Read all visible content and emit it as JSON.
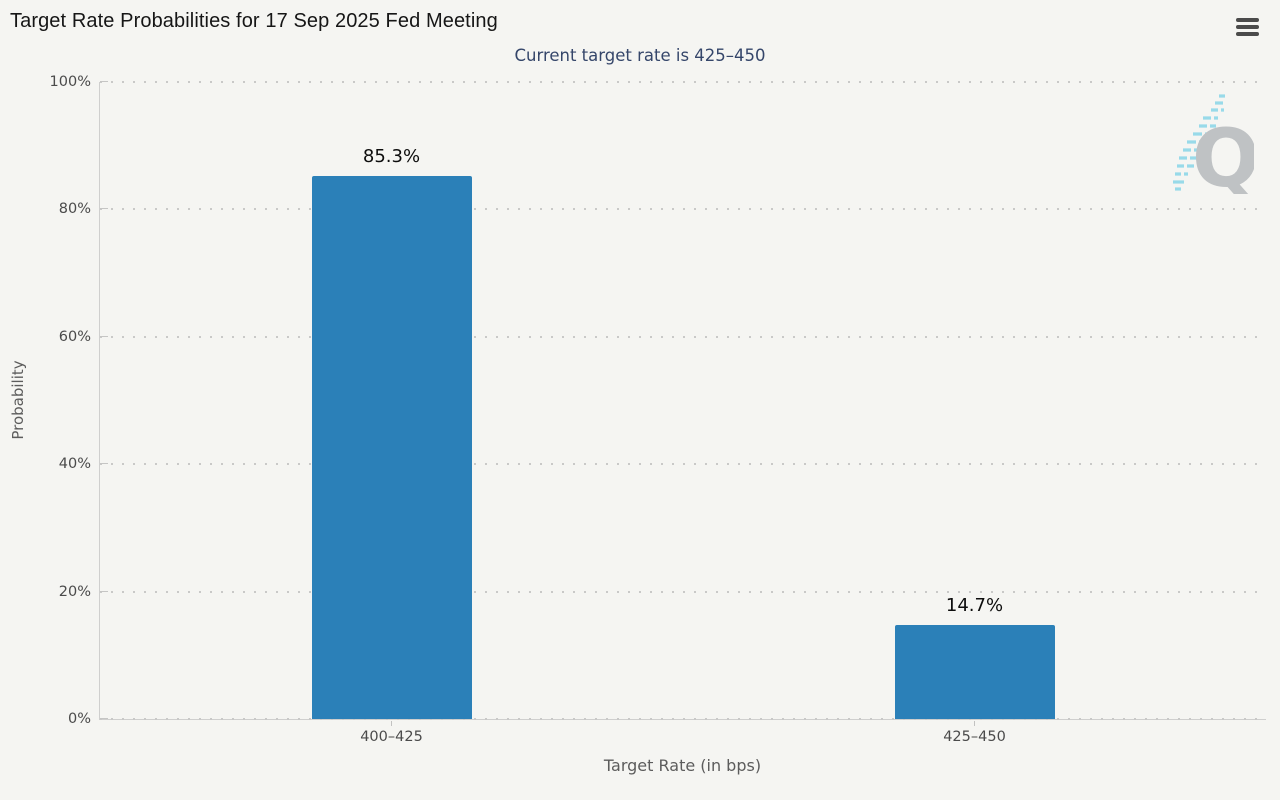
{
  "header": {
    "title": "Target Rate Probabilities for 17 Sep 2025 Fed Meeting",
    "subtitle": "Current target rate is 425–450"
  },
  "menu": {
    "icon": "hamburger-menu-icon"
  },
  "watermark": {
    "letter": "Q"
  },
  "chart_data": {
    "type": "bar",
    "title": "Target Rate Probabilities for 17 Sep 2025 Fed Meeting",
    "subtitle": "Current target rate is 425–450",
    "categories": [
      "400–425",
      "425–450"
    ],
    "values": [
      85.3,
      14.7
    ],
    "value_labels": [
      "85.3%",
      "14.7%"
    ],
    "xlabel": "Target Rate (in bps)",
    "ylabel": "Probability",
    "ylim": [
      0,
      100
    ],
    "yticks": [
      0,
      20,
      40,
      60,
      80,
      100
    ],
    "ytick_labels": [
      "0%",
      "20%",
      "40%",
      "60%",
      "80%",
      "100%"
    ],
    "grid": "dotted horizontal",
    "legend": "none",
    "bar_color": "#2b80b8",
    "background_color": "#f5f5f2"
  }
}
